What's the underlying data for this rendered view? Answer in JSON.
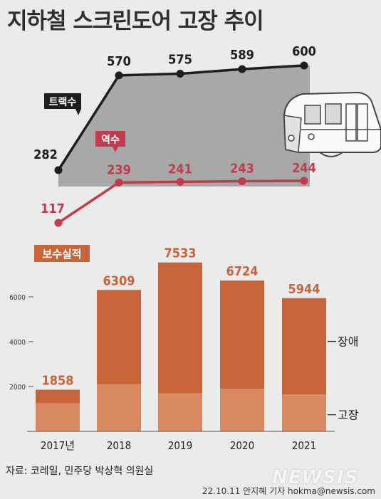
{
  "title": "지하철 스크린도어 고장 추이",
  "source": "자료: 코레일, 민주당 박상혁 의원실",
  "credit": "22.10.11 안지혜 기자 hokma@newsis.com",
  "watermark": "NEWSIS",
  "colors": {
    "tracks": "#1e1e1e",
    "stations": "#c23a4c",
    "bar_dark": "#c8643a",
    "bar_light": "#d98a62",
    "gray_fill": "#a8a8a8",
    "background": "#ebebeb"
  },
  "chart_data": [
    {
      "type": "line",
      "x": [
        "2017년",
        "2018",
        "2019",
        "2020",
        "2021"
      ],
      "series": [
        {
          "name": "트랙수",
          "values": [
            282,
            570,
            575,
            589,
            600
          ]
        },
        {
          "name": "역수",
          "values": [
            117,
            239,
            241,
            243,
            244
          ]
        }
      ]
    },
    {
      "type": "bar",
      "label": "보수실적",
      "categories": [
        "2017년",
        "2018",
        "2019",
        "2020",
        "2021"
      ],
      "totals": [
        1858,
        6309,
        7533,
        6724,
        5944
      ],
      "series": [
        {
          "name": "고장",
          "values": [
            1250,
            2100,
            1700,
            1900,
            1650
          ]
        },
        {
          "name": "장애",
          "values": [
            608,
            4209,
            5833,
            4824,
            4294
          ]
        }
      ],
      "yticks": [
        2000,
        4000,
        6000
      ],
      "ylim": [
        0,
        8000
      ]
    }
  ]
}
